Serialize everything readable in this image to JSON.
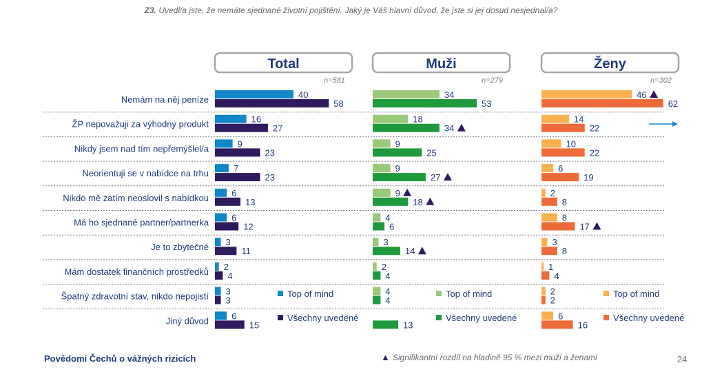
{
  "question": {
    "code": "Z3.",
    "text": "Uvedl/a jste, že nemáte sjednané životní pojištění. Jaký je Váš hlavní důvod, že jste si jej dosud nesjednal/a?"
  },
  "footer": {
    "left": "Povědomí Čechů o vážných rizicích",
    "note": "Signifikantní rozdíl na hladině 95 % mezi muži a ženami",
    "page": "24"
  },
  "colors": {
    "total_top": "#1187c9",
    "total_all": "#2d1b5e",
    "muzi_top": "#9bc97a",
    "muzi_all": "#1e9a3c",
    "zeny_top": "#f9b04f",
    "zeny_all": "#ee6a38",
    "label": "#1f3a7a",
    "arrow": "#1187c9"
  },
  "chart_data": {
    "type": "bar",
    "categories": [
      "Nemám na něj peníze",
      "ŽP nepovažuji za výhodný produkt",
      "Nikdy jsem nad tím nepřemýšlel/a",
      "Neorientuji se v nabídce na trhu",
      "Nikdo mě zatím neoslovil s nabídkou",
      "Má ho sjednané partner/partnerka",
      "Je to zbytečné",
      "Mám dostatek finančních prostředků",
      "Špatný zdravotní stav, nikdo nepojistí",
      "Jiný důvod"
    ],
    "groups": [
      {
        "title": "Total",
        "n": "n=581",
        "series": [
          {
            "name": "Top of mind",
            "values": [
              40,
              16,
              9,
              7,
              6,
              6,
              3,
              2,
              3,
              6
            ],
            "flags": [
              false,
              false,
              false,
              false,
              false,
              false,
              false,
              false,
              false,
              false
            ]
          },
          {
            "name": "Všechny uvedené",
            "values": [
              58,
              27,
              23,
              23,
              13,
              12,
              11,
              4,
              3,
              15
            ],
            "flags": [
              false,
              false,
              false,
              false,
              false,
              false,
              false,
              false,
              false,
              false
            ]
          }
        ]
      },
      {
        "title": "Muži",
        "n": "n=279",
        "series": [
          {
            "name": "Top of mind",
            "values": [
              34,
              18,
              9,
              9,
              9,
              4,
              3,
              2,
              4,
              null
            ],
            "flags": [
              false,
              false,
              false,
              false,
              true,
              false,
              false,
              false,
              false,
              false
            ]
          },
          {
            "name": "Všechny uvedené",
            "values": [
              53,
              34,
              25,
              27,
              18,
              6,
              14,
              4,
              4,
              13
            ],
            "flags": [
              false,
              true,
              false,
              true,
              true,
              false,
              true,
              false,
              false,
              false
            ]
          }
        ]
      },
      {
        "title": "Ženy",
        "n": "n=302",
        "series": [
          {
            "name": "Top of mind",
            "values": [
              46,
              14,
              10,
              6,
              2,
              8,
              3,
              1,
              2,
              6
            ],
            "flags": [
              true,
              false,
              false,
              false,
              false,
              false,
              false,
              false,
              false,
              false
            ]
          },
          {
            "name": "Všechny uvedené",
            "values": [
              62,
              22,
              22,
              19,
              8,
              17,
              8,
              4,
              2,
              16
            ],
            "flags": [
              false,
              false,
              false,
              false,
              false,
              true,
              false,
              false,
              false,
              false
            ]
          }
        ]
      }
    ]
  }
}
